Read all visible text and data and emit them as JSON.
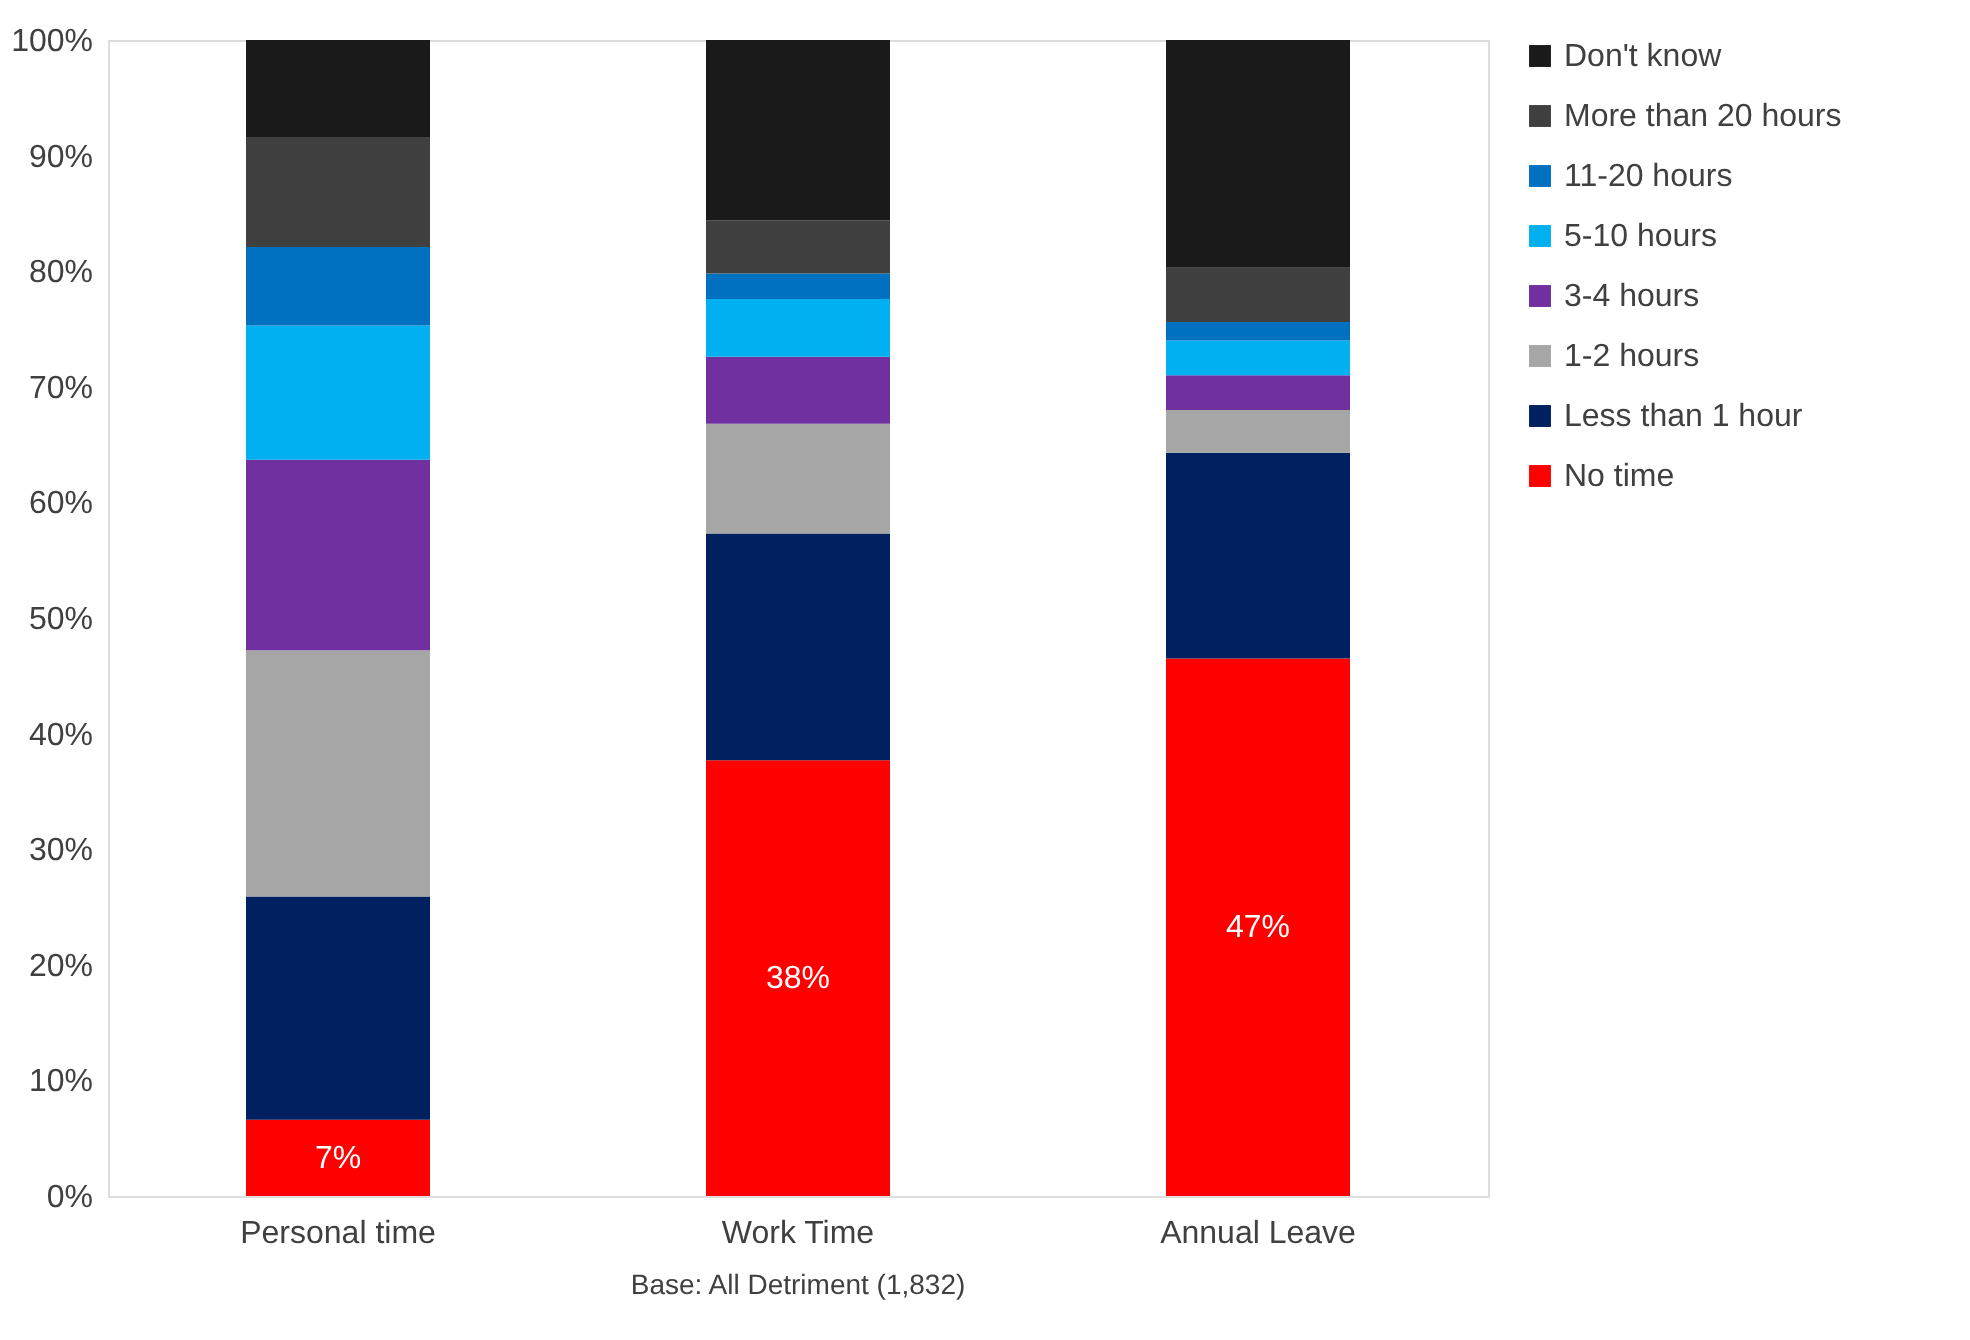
{
  "chart_data": {
    "type": "bar",
    "stacked": true,
    "categories": [
      "Personal time",
      "Work Time",
      "Annual Leave"
    ],
    "series": [
      {
        "name": "No time",
        "color": "#ff0000",
        "values": [
          6.6,
          37.7,
          46.5
        ],
        "value_labels": [
          "7%",
          "38%",
          "47%"
        ]
      },
      {
        "name": "Less than 1 hour",
        "color": "#002060",
        "values": [
          19.3,
          19.6,
          17.8
        ]
      },
      {
        "name": "1-2 hours",
        "color": "#a6a6a6",
        "values": [
          21.3,
          9.5,
          3.7
        ]
      },
      {
        "name": "3-4 hours",
        "color": "#7030a0",
        "values": [
          16.5,
          5.8,
          3.0
        ]
      },
      {
        "name": "5-10 hours",
        "color": "#00b0f0",
        "values": [
          11.6,
          5.0,
          3.0
        ]
      },
      {
        "name": "11-20 hours",
        "color": "#0070c0",
        "values": [
          6.8,
          2.2,
          1.6
        ]
      },
      {
        "name": "More than 20 hours",
        "color": "#404040",
        "values": [
          9.5,
          4.6,
          4.7
        ]
      },
      {
        "name": "Don't know",
        "color": "#1a1a1a",
        "values": [
          8.4,
          15.6,
          19.7
        ]
      }
    ],
    "ylim": [
      0,
      100
    ],
    "yticks": [
      {
        "value": 0,
        "label": "0%"
      },
      {
        "value": 10,
        "label": "10%"
      },
      {
        "value": 20,
        "label": "20%"
      },
      {
        "value": 30,
        "label": "30%"
      },
      {
        "value": 40,
        "label": "40%"
      },
      {
        "value": 50,
        "label": "50%"
      },
      {
        "value": 60,
        "label": "60%"
      },
      {
        "value": 70,
        "label": "70%"
      },
      {
        "value": 80,
        "label": "80%"
      },
      {
        "value": 90,
        "label": "90%"
      },
      {
        "value": 100,
        "label": "100%"
      }
    ],
    "grid": false,
    "legend": "right",
    "annotations": [
      "Base: All Detriment (1,832)"
    ]
  }
}
